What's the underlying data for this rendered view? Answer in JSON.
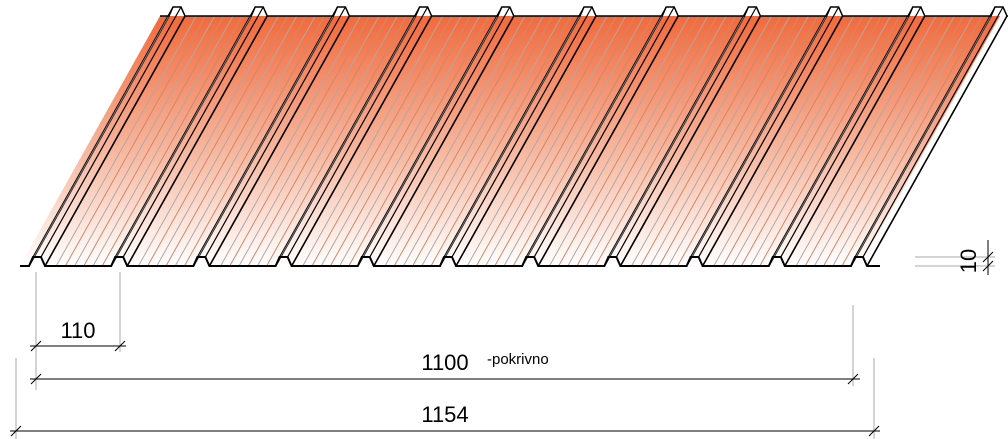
{
  "dimensions": {
    "rib_pitch": "110",
    "cover_width": "1100",
    "cover_note": "-pokrivno",
    "total_width": "1154",
    "height": "10"
  }
}
